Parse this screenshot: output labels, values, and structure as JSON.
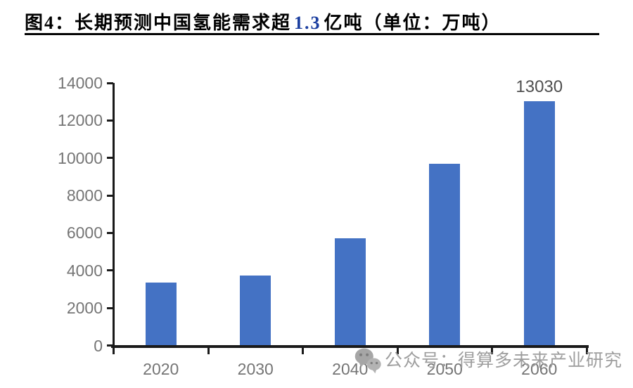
{
  "header": {
    "title_prefix": "图4：",
    "title_main": "长期预测中国氢能需求超",
    "title_highlight": "1.3",
    "title_suffix": "亿吨（单位：万吨）",
    "highlight_color": "#1C3FA0"
  },
  "chart_data": {
    "type": "bar",
    "title": "长期预测中国氢能需求超1.3亿吨",
    "unit": "万吨",
    "categories": [
      "2020",
      "2030",
      "2040",
      "2050",
      "2060"
    ],
    "values": [
      3342,
      3715,
      5700,
      9690,
      13030
    ],
    "ylim": [
      0,
      14000
    ],
    "yticks": [
      0,
      2000,
      4000,
      6000,
      8000,
      10000,
      12000,
      14000
    ],
    "grid": false,
    "legend": "none",
    "bar_color": "#4472C4",
    "axis_color": "#1a1a1a",
    "tick_label_color": "#757575",
    "bar_label": {
      "index": 4,
      "text": "13030",
      "color": "#4f4f4f"
    }
  },
  "watermark": {
    "icon": "wechat-icon",
    "text": "公众号：得算多未来产业研究",
    "color": "#9e9e9e"
  }
}
